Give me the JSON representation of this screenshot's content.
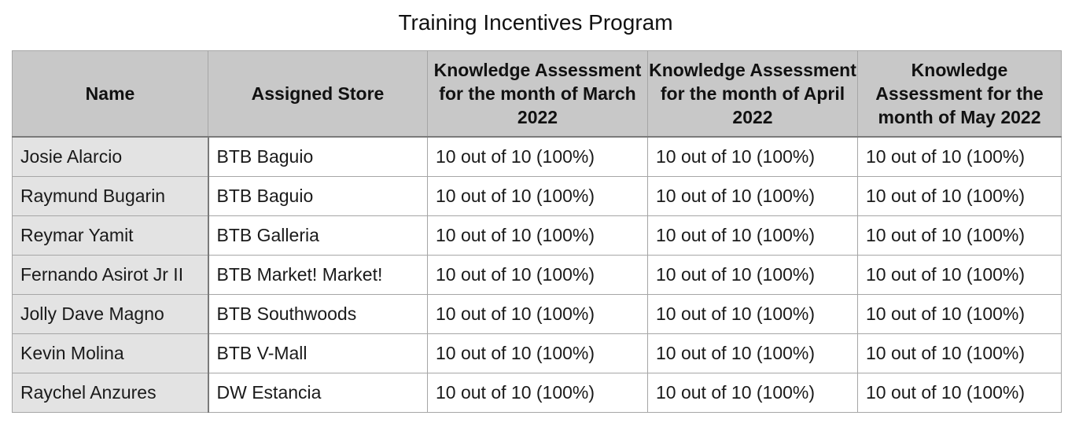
{
  "title": "Training Incentives Program",
  "table": {
    "headers": [
      "Name",
      "Assigned Store",
      "Knowledge Assessment for the month of March 2022",
      "Knowledge Assessment for the month of April 2022",
      "Knowledge Assessment for the month of May 2022"
    ],
    "rows": [
      [
        "Josie Alarcio",
        "BTB Baguio",
        "10 out of 10 (100%)",
        "10 out of 10 (100%)",
        "10 out of 10 (100%)"
      ],
      [
        "Raymund Bugarin",
        "BTB Baguio",
        "10 out of 10 (100%)",
        "10 out of 10 (100%)",
        "10 out of 10 (100%)"
      ],
      [
        "Reymar Yamit",
        "BTB Galleria",
        "10 out of 10 (100%)",
        "10 out of 10 (100%)",
        "10 out of 10 (100%)"
      ],
      [
        "Fernando Asirot Jr II",
        "BTB Market! Market!",
        "10 out of 10 (100%)",
        "10 out of 10 (100%)",
        "10 out of 10 (100%)"
      ],
      [
        "Jolly Dave Magno",
        "BTB Southwoods",
        "10 out of 10 (100%)",
        "10 out of 10 (100%)",
        "10 out of 10 (100%)"
      ],
      [
        "Kevin Molina",
        "BTB V-Mall",
        "10 out of 10 (100%)",
        "10 out of 10 (100%)",
        "10 out of 10 (100%)"
      ],
      [
        "Raychel Anzures",
        "DW Estancia",
        "10 out of 10 (100%)",
        "10 out of 10 (100%)",
        "10 out of 10 (100%)"
      ]
    ]
  }
}
